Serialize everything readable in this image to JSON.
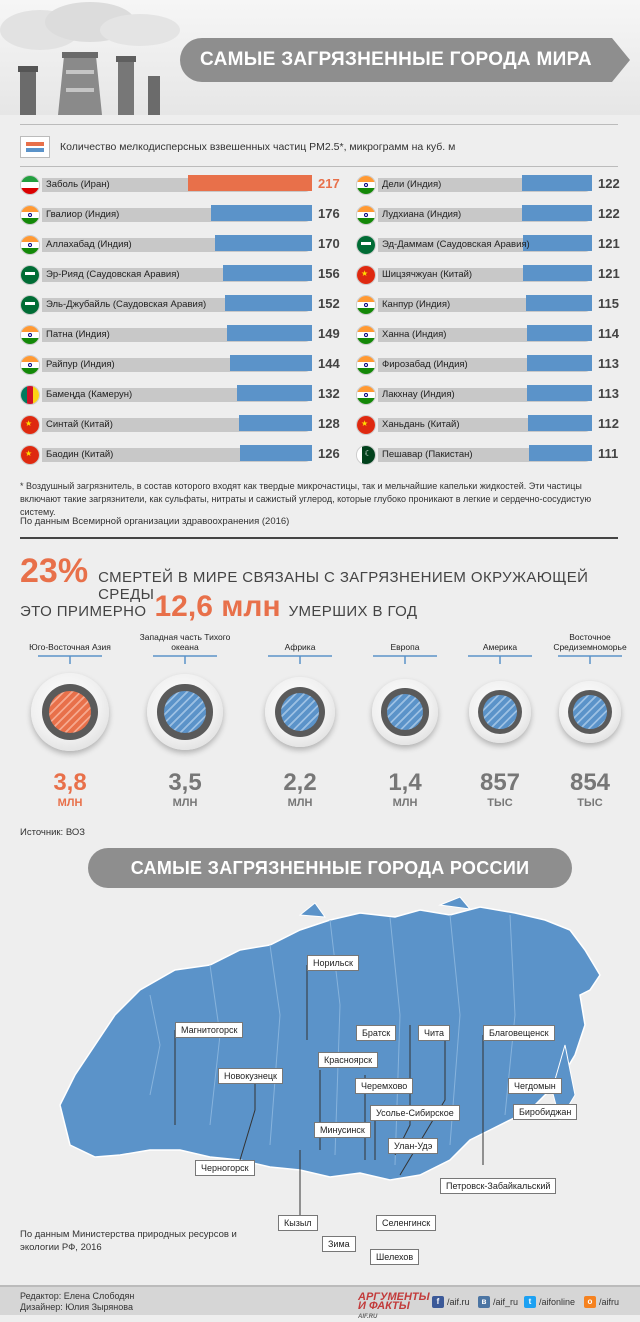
{
  "header": {
    "title": "САМЫЕ ЗАГРЯЗНЕННЫЕ ГОРОДА МИРА"
  },
  "legend": {
    "text": "Количество мелкодисперсных взвешенных частиц PM2.5*, микрограмм на куб. м"
  },
  "chart_data": {
    "type": "bar",
    "unit": "мкг/м³",
    "xlim": [
      0,
      217
    ],
    "left": [
      {
        "city": "Заболь (Иран)",
        "value": 217,
        "flag": "iran"
      },
      {
        "city": "Гвалиор (Индия)",
        "value": 176,
        "flag": "india"
      },
      {
        "city": "Аллахабад (Индия)",
        "value": 170,
        "flag": "india"
      },
      {
        "city": "Эр-Рияд (Саудовская Аравия)",
        "value": 156,
        "flag": "saudi"
      },
      {
        "city": "Эль-Джубайль (Саудовская Аравия)",
        "value": 152,
        "flag": "saudi"
      },
      {
        "city": "Патна (Индия)",
        "value": 149,
        "flag": "india"
      },
      {
        "city": "Райпур (Индия)",
        "value": 144,
        "flag": "india"
      },
      {
        "city": "Бамеңда (Камерун)",
        "value": 132,
        "flag": "cameroon"
      },
      {
        "city": "Синтай (Китай)",
        "value": 128,
        "flag": "china"
      },
      {
        "city": "Баодин (Китай)",
        "value": 126,
        "flag": "china"
      }
    ],
    "right": [
      {
        "city": "Дели (Индия)",
        "value": 122,
        "flag": "india"
      },
      {
        "city": "Лудхиана (Индия)",
        "value": 122,
        "flag": "india"
      },
      {
        "city": "Эд-Даммам (Саудовская Аравия)",
        "value": 121,
        "flag": "saudi"
      },
      {
        "city": "Шицзячжуан (Китай)",
        "value": 121,
        "flag": "china"
      },
      {
        "city": "Канпур (Индия)",
        "value": 115,
        "flag": "india"
      },
      {
        "city": "Ханна (Индия)",
        "value": 114,
        "flag": "india"
      },
      {
        "city": "Фирозабад (Индия)",
        "value": 113,
        "flag": "india"
      },
      {
        "city": "Лакхнау (Индия)",
        "value": 113,
        "flag": "india"
      },
      {
        "city": "Ханьдань (Китай)",
        "value": 112,
        "flag": "china"
      },
      {
        "city": "Пешавар (Пакистан)",
        "value": 111,
        "flag": "pakistan"
      }
    ],
    "colors": {
      "highlight": "#e8704a",
      "bar": "#5b93c9"
    }
  },
  "footnote": "* Воздушный загрязнитель, в состав которого входят как твердые микрочастицы, так и мельчайшие капельки жидкостей. Эти частицы включают такие загрязнители, как сульфаты, нитраты и сажистый углерод, которые глубоко проникают в легкие и сердечно-сосудистую систему.",
  "source_who": "По данным Всемирной организации здравоохранения (2016)",
  "stats": {
    "percent": "23%",
    "percent_text": "СМЕРТЕЙ В МИРЕ СВЯЗАНЫ С ЗАГРЯЗНЕНИЕМ ОКРУЖАЮЩЕЙ СРЕДЫ",
    "approx_prefix": "ЭТО ПРИМЕРНО",
    "approx_value": "12,6 млн",
    "approx_suffix": "УМЕРШИХ В ГОД"
  },
  "regions": [
    {
      "label": "Юго-Восточная Азия",
      "value": "3,8",
      "unit": "МЛН",
      "amount": 3.8
    },
    {
      "label": "Западная часть Тихого океана",
      "value": "3,5",
      "unit": "МЛН",
      "amount": 3.5
    },
    {
      "label": "Африка",
      "value": "2,2",
      "unit": "МЛН",
      "amount": 2.2
    },
    {
      "label": "Европа",
      "value": "1,4",
      "unit": "МЛН",
      "amount": 1.4
    },
    {
      "label": "Америка",
      "value": "857",
      "unit": "ТЫС",
      "amount": 0.857
    },
    {
      "label": "Восточное Средиземноморье",
      "value": "854",
      "unit": "ТЫС",
      "amount": 0.854
    }
  ],
  "source_voz": "Источник: ВОЗ",
  "russia": {
    "title": "САМЫЕ ЗАГРЯЗНЕННЫЕ ГОРОДА РОССИИ",
    "cities": [
      "Норильск",
      "Магнитогорск",
      "Новокузнецк",
      "Красноярск",
      "Братск",
      "Чита",
      "Благовещенск",
      "Черемхово",
      "Чегдомын",
      "Усолье-Сибирское",
      "Минусинск",
      "Биробиджан",
      "Улан-Удэ",
      "Черногорск",
      "Петровск-Забайкальский",
      "Кызыл",
      "Селенгинск",
      "Зима",
      "Шелехов"
    ],
    "source": "По данным Министерства природных ресурсов и экологии РФ, 2016"
  },
  "footer": {
    "editor": "Редактор: Елена Слободян",
    "designer": "Дизайнер: Юлия Зырянова",
    "brand": "АРГУМЕНТЫ И ФАКТЫ",
    "brand_site": "AIF.RU",
    "social": [
      "/aif.ru",
      "/aif_ru",
      "/aifonline",
      "/aifru"
    ]
  }
}
